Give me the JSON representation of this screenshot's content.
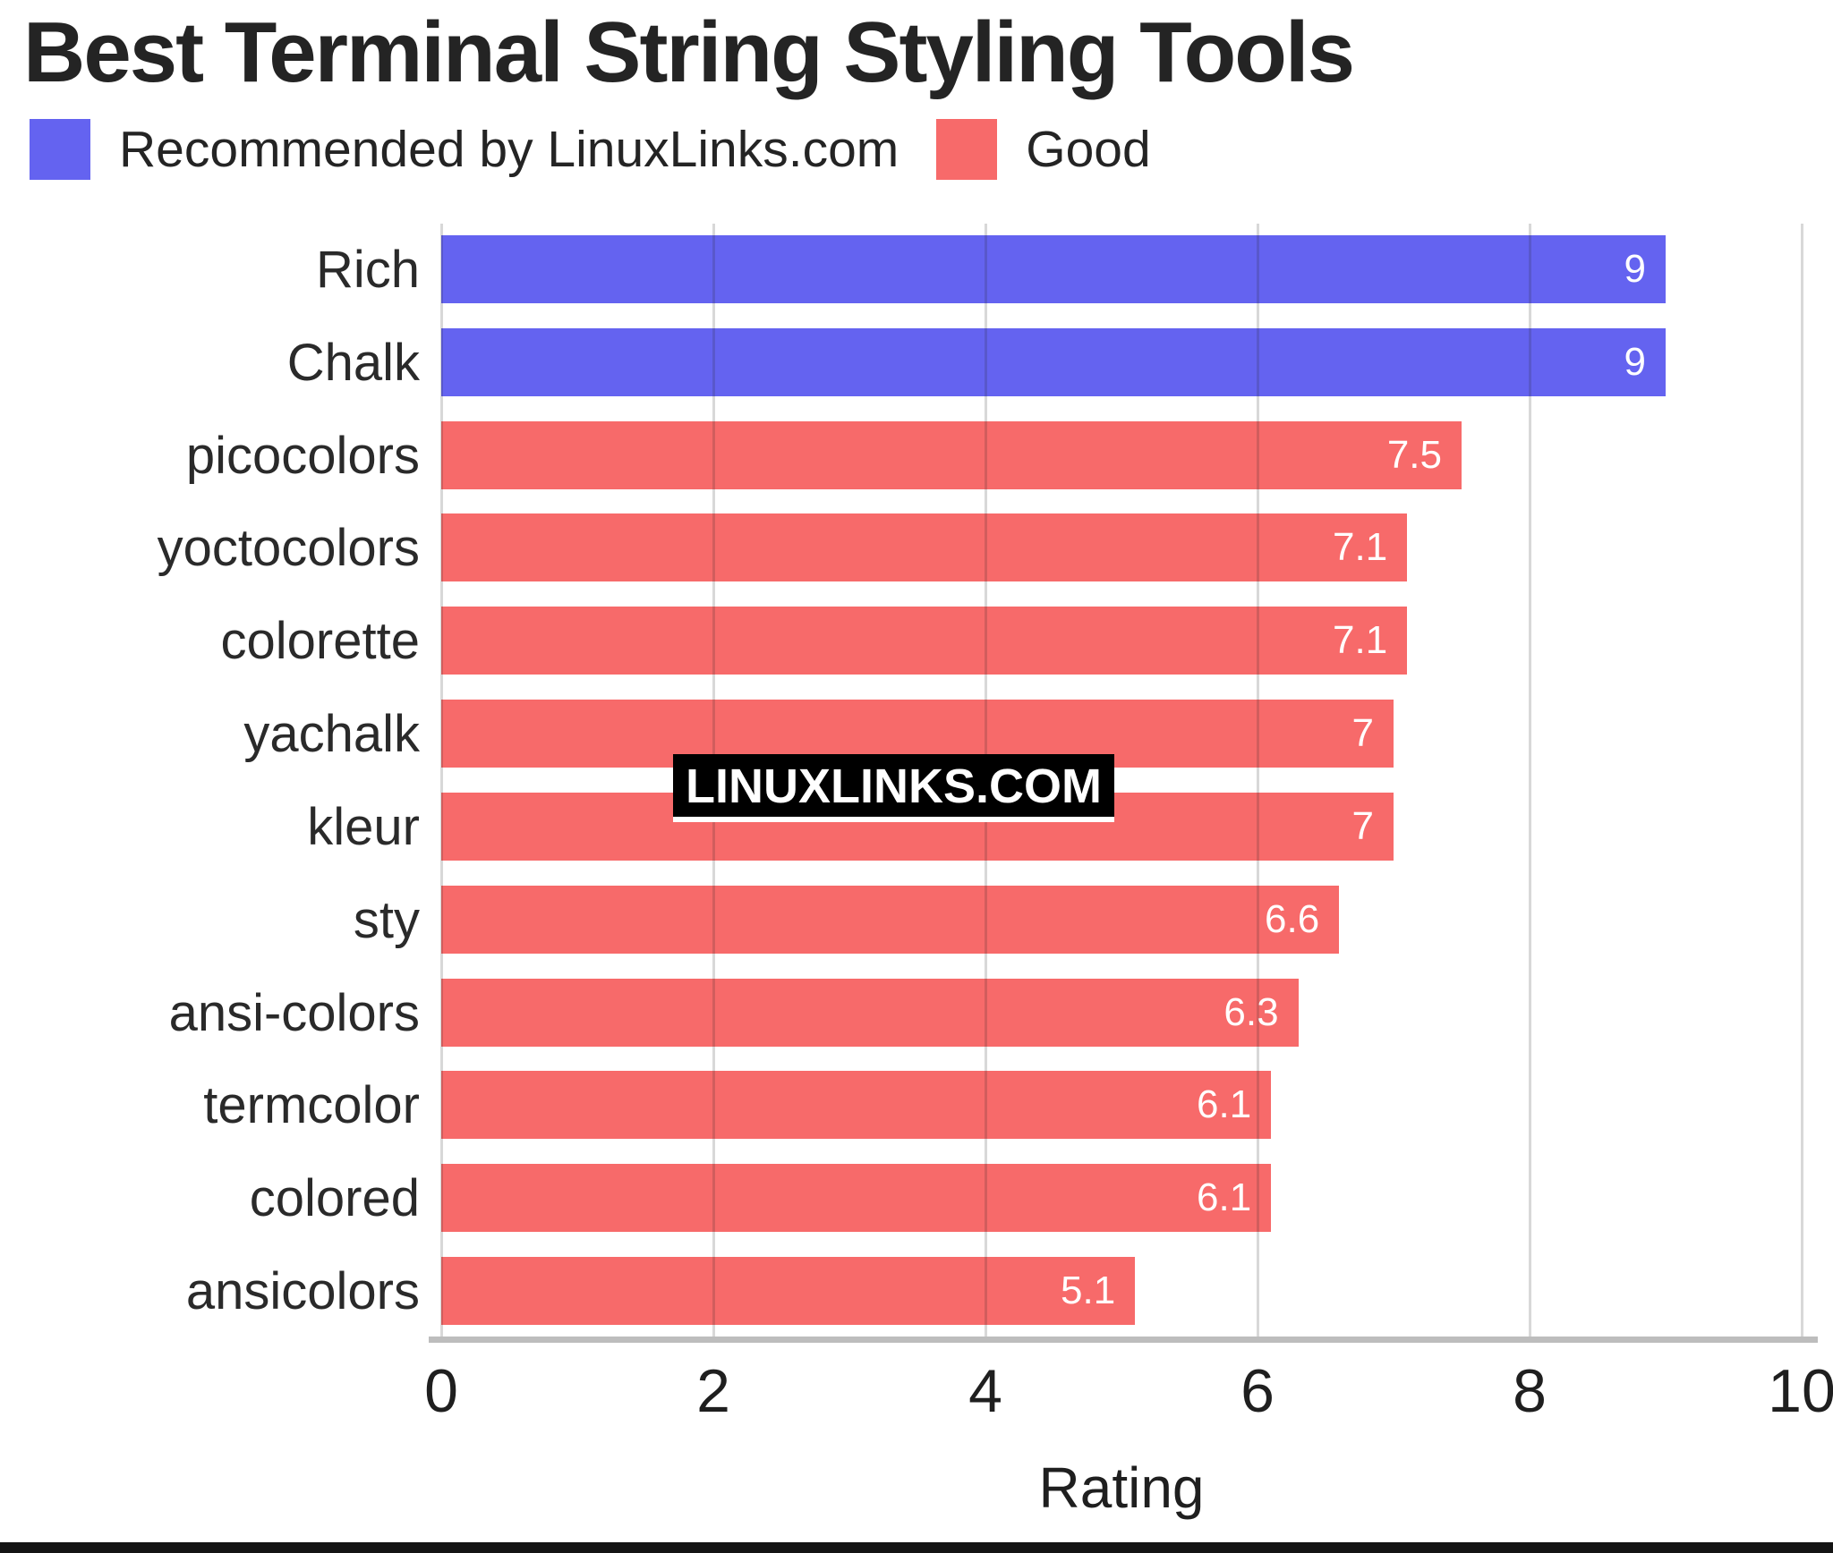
{
  "title": "Best Terminal String Styling Tools",
  "legend": [
    {
      "label": "Recommended by LinuxLinks.com",
      "color": "#6463f0",
      "key": "recommended"
    },
    {
      "label": "Good",
      "color": "#f76a6a",
      "key": "good"
    }
  ],
  "watermark": "LINUXLINKS.COM",
  "colors": {
    "recommended": "#6463f0",
    "good": "#f76a6a",
    "gridline": "#cccccc",
    "axis_line": "#bdbdbd",
    "value_label": "#ffffff",
    "text": "#242424",
    "watermark_bg": "#000000",
    "watermark_text": "#ffffff"
  },
  "chart_data": {
    "type": "bar",
    "orientation": "horizontal",
    "title": "Best Terminal String Styling Tools",
    "categories": [
      "Rich",
      "Chalk",
      "picocolors",
      "yoctocolors",
      "colorette",
      "yachalk",
      "kleur",
      "sty",
      "ansi-colors",
      "termcolor",
      "colored",
      "ansicolors"
    ],
    "values": [
      9,
      9,
      7.5,
      7.1,
      7.1,
      7,
      7,
      6.6,
      6.3,
      6.1,
      6.1,
      5.1
    ],
    "value_labels": [
      "9",
      "9",
      "7.5",
      "7.1",
      "7.1",
      "7",
      "7",
      "6.6",
      "6.3",
      "6.1",
      "6.1",
      "5.1"
    ],
    "groups": [
      "recommended",
      "recommended",
      "good",
      "good",
      "good",
      "good",
      "good",
      "good",
      "good",
      "good",
      "good",
      "good"
    ],
    "series": [
      {
        "name": "Recommended by LinuxLinks.com",
        "color": "#6463f0"
      },
      {
        "name": "Good",
        "color": "#f76a6a"
      }
    ],
    "xlabel": "Rating",
    "ylabel": "",
    "xticks": [
      0,
      2,
      4,
      6,
      8,
      10
    ],
    "xlim": [
      0,
      10
    ],
    "grid": true,
    "legend_position": "top"
  }
}
